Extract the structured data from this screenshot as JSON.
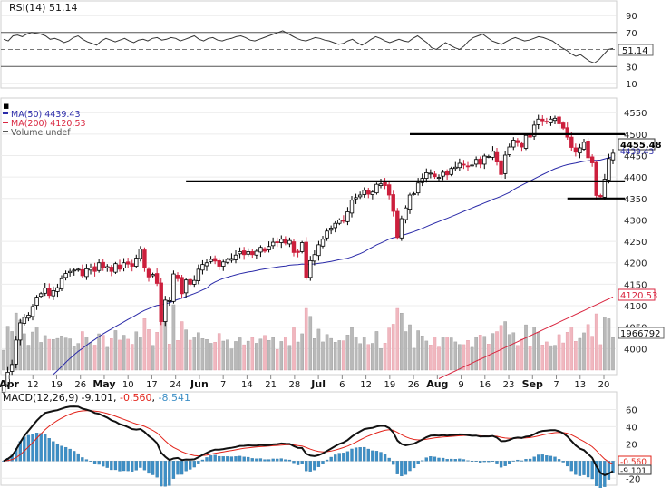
{
  "chart_data": {
    "type": "stock-chart",
    "symbol_label": "$SPX (Daily) 4455.48",
    "colors": {
      "price_up": "#000000",
      "price_down": "#cc1f3c",
      "ma50": "#2a2aa8",
      "ma200": "#d9253f",
      "volume_up": "#b9b9b9",
      "volume_down": "#f0b7bf",
      "rsi": "#333333",
      "macd": "#111111",
      "signal": "#e2231a",
      "histogram": "#3d8fc6"
    },
    "rsi_panel": {
      "label": "RSI(14) 51.14",
      "last_value_label": "51.14",
      "last_value": 51.14,
      "ylim": [
        10,
        90
      ],
      "y_ticks": [
        "90",
        "70",
        "50",
        "30",
        "10"
      ],
      "overbought": 70,
      "oversold": 30,
      "values": [
        62,
        60,
        66,
        67,
        65,
        68,
        70,
        69,
        68,
        66,
        62,
        63,
        61,
        58,
        60,
        64,
        66,
        62,
        59,
        57,
        55,
        60,
        63,
        61,
        59,
        61,
        63,
        60,
        58,
        61,
        62,
        60,
        63,
        64,
        61,
        62,
        64,
        63,
        60,
        62,
        64,
        66,
        62,
        60,
        63,
        64,
        61,
        60,
        62,
        63,
        65,
        66,
        64,
        61,
        60,
        62,
        64,
        66,
        68,
        70,
        72,
        69,
        66,
        63,
        61,
        60,
        62,
        64,
        63,
        61,
        60,
        58,
        56,
        57,
        60,
        62,
        58,
        55,
        58,
        62,
        65,
        63,
        60,
        58,
        60,
        62,
        60,
        59,
        63,
        66,
        62,
        58,
        52,
        50,
        54,
        58,
        55,
        52,
        50,
        54,
        60,
        64,
        66,
        68,
        64,
        60,
        58,
        56,
        59,
        62,
        64,
        62,
        60,
        61,
        63,
        65,
        64,
        62,
        60,
        56,
        52,
        49,
        45,
        42,
        44,
        40,
        36,
        34,
        38,
        44,
        50,
        51.14
      ]
    },
    "price_panel": {
      "ylim": [
        3950,
        4580
      ],
      "y_ticks": [
        "4550",
        "4500",
        "4450",
        "4400",
        "4350",
        "4300",
        "4250",
        "4200",
        "4150",
        "4100",
        "4050",
        "4000"
      ],
      "last_price_label": "4455.48",
      "last_price": 4455.48,
      "ma50_label_value": "4439.43",
      "ma200_label_value": "4120.53",
      "ma200_last": 4120.53,
      "volume_last_label": "1966792",
      "legend": [
        {
          "key": "ma50",
          "label": "MA(50) 4439.43"
        },
        {
          "key": "ma200",
          "label": "MA(200) 4120.53"
        },
        {
          "key": "volume",
          "label": "Volume undef"
        }
      ],
      "closes": [
        3913,
        3945,
        3963,
        4020,
        4060,
        4073,
        4078,
        4098,
        4120,
        4128,
        4141,
        4124,
        4135,
        4142,
        4163,
        4175,
        4180,
        4183,
        4185,
        4170,
        4186,
        4188,
        4180,
        4200,
        4188,
        4191,
        4180,
        4198,
        4185,
        4200,
        4197,
        4192,
        4211,
        4232,
        4188,
        4167,
        4173,
        4152,
        4063,
        4113,
        4112,
        4174,
        4163,
        4128,
        4160,
        4150,
        4159,
        4185,
        4196,
        4200,
        4208,
        4204,
        4192,
        4202,
        4208,
        4210,
        4218,
        4226,
        4219,
        4226,
        4219,
        4227,
        4236,
        4227,
        4238,
        4248,
        4247,
        4255,
        4246,
        4252,
        4224,
        4224,
        4247,
        4166,
        4205,
        4219,
        4242,
        4255,
        4274,
        4281,
        4292,
        4300,
        4298,
        4319,
        4346,
        4352,
        4358,
        4369,
        4360,
        4365,
        4383,
        4384,
        4380,
        4358,
        4320,
        4259,
        4303,
        4328,
        4358,
        4361,
        4386,
        4397,
        4410,
        4409,
        4401,
        4399,
        4411,
        4405,
        4420,
        4423,
        4432,
        4429,
        4425,
        4428,
        4441,
        4430,
        4449,
        4448,
        4460,
        4435,
        4406,
        4451,
        4470,
        4486,
        4480,
        4470,
        4497,
        4493,
        4521,
        4535,
        4531,
        4528,
        4535,
        4537,
        4524,
        4514,
        4493,
        4469,
        4458,
        4468,
        4481,
        4445,
        4433,
        4357,
        4354,
        4395,
        4443,
        4455.48
      ],
      "resistance_lines": [
        {
          "value": 4500,
          "from_index": 98,
          "to_index": 149
        },
        {
          "value": 4390,
          "from_index": 44,
          "to_index": 149
        },
        {
          "value": 4350,
          "from_index": 136,
          "to_index": 149
        }
      ],
      "x_ticks": [
        "Apr",
        "12",
        "19",
        "26",
        "May",
        "10",
        "17",
        "24",
        "Jun",
        "7",
        "14",
        "21",
        "28",
        "Jul",
        "6",
        "12",
        "19",
        "26",
        "Aug",
        "9",
        "16",
        "23",
        "Sep",
        "7",
        "13",
        "20"
      ]
    },
    "macd_panel": {
      "label_prefix": "MACD(12,26,9)",
      "label_macd": "-9.101",
      "label_signal": "-0.560",
      "label_hist": "-8.541",
      "ylim": [
        -25,
        70
      ],
      "y_ticks": [
        "60",
        "40",
        "20",
        "0",
        "-20"
      ],
      "signal_last_label": "-0.560",
      "macd_last_label": "-9.101",
      "macd_last": -9.101,
      "signal_last": -0.56
    }
  }
}
